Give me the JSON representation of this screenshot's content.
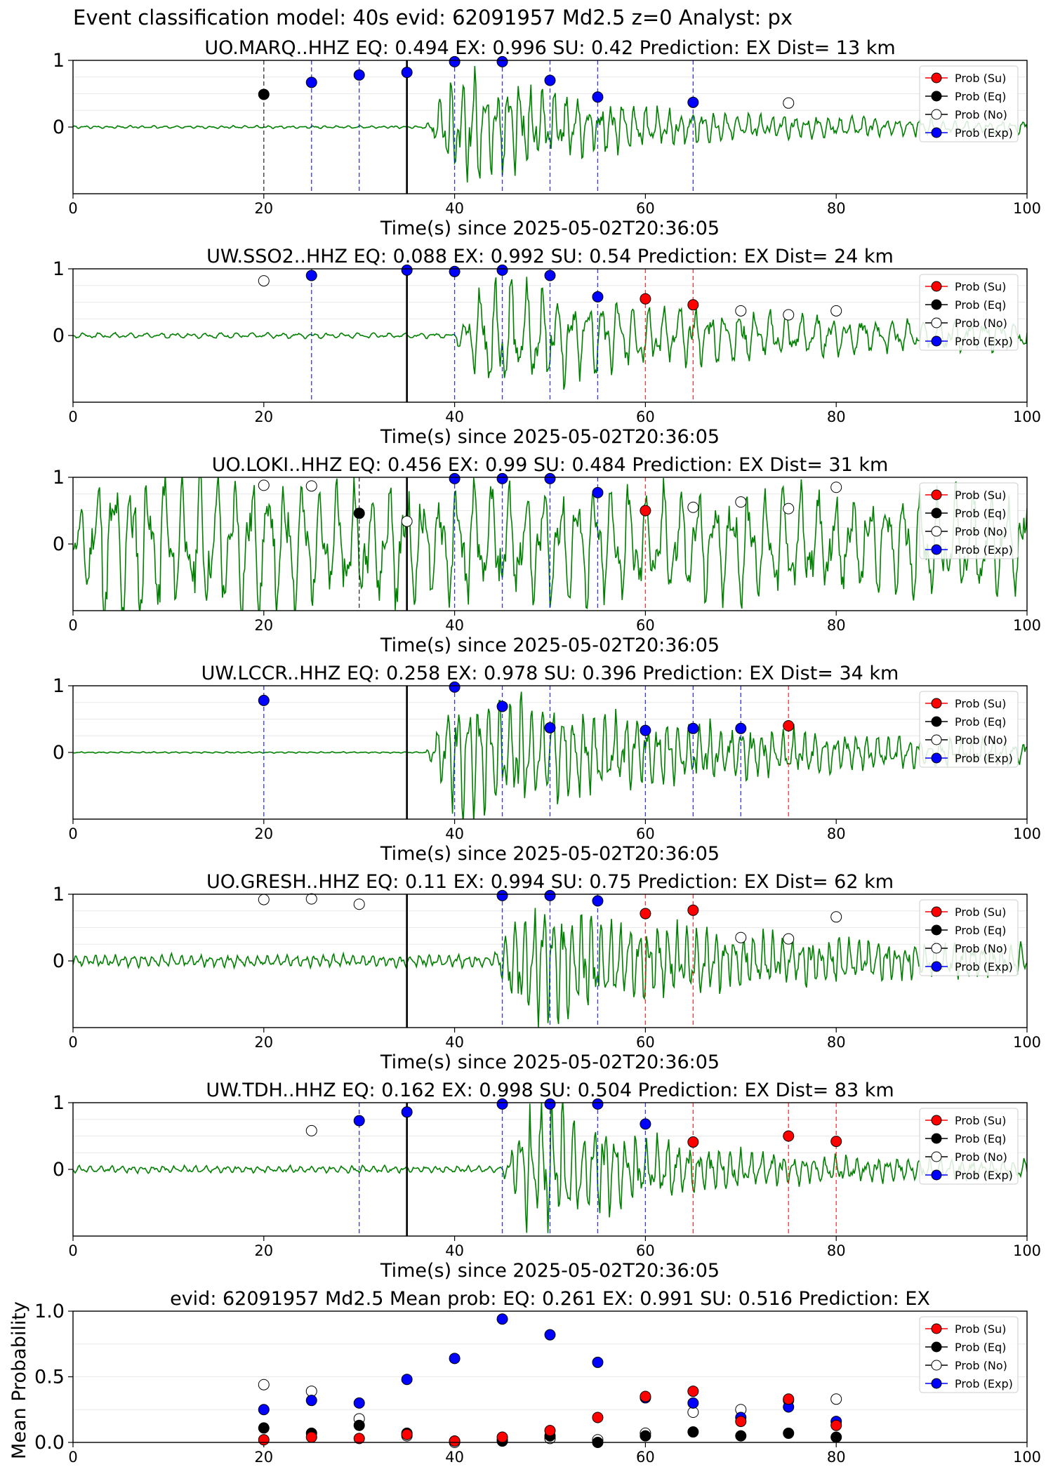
{
  "figure_title": "Event classification model: 40s evid: 62091957 Md2.5 z=0 Analyst: px",
  "legend_labels": [
    "Prob (Su)",
    "Prob (Eq)",
    "Prob (No)",
    "Prob (Exp)"
  ],
  "colors": {
    "su": "#ff0000",
    "eq": "#000000",
    "no": "#ffffff",
    "exp": "#0000ff",
    "waveform": "#008000"
  },
  "chart_data": [
    {
      "type": "line",
      "title": "UO.MARQ..HHZ   EQ: 0.494  EX: 0.996  SU: 0.42   Prediction: EX    Dist= 13 km",
      "xlabel": "Time(s) since 2025-05-02T20:36:05",
      "xlim": [
        0,
        100
      ],
      "ylim": [
        -1,
        1
      ],
      "xticks": [
        0,
        20,
        40,
        60,
        80,
        100
      ],
      "yticks": [
        0,
        1
      ],
      "origin_line_x": 35,
      "waveform": {
        "onset": 37,
        "end_time": 90,
        "amp": 0.75,
        "noise": 0.02,
        "period": 1.2,
        "seed": 3,
        "decay": 14,
        "tail": 0.08
      },
      "points": [
        {
          "x": 20,
          "y": 0.49,
          "class": "eq"
        },
        {
          "x": 25,
          "y": 0.67,
          "class": "exp"
        },
        {
          "x": 30,
          "y": 0.78,
          "class": "exp"
        },
        {
          "x": 35,
          "y": 0.82,
          "class": "exp"
        },
        {
          "x": 40,
          "y": 0.98,
          "class": "exp"
        },
        {
          "x": 45,
          "y": 0.98,
          "class": "exp"
        },
        {
          "x": 50,
          "y": 0.7,
          "class": "exp"
        },
        {
          "x": 55,
          "y": 0.45,
          "class": "exp"
        },
        {
          "x": 65,
          "y": 0.37,
          "class": "exp"
        },
        {
          "x": 75,
          "y": 0.36,
          "class": "no"
        }
      ]
    },
    {
      "type": "line",
      "title": "UW.SSO2..HHZ   EQ: 0.088  EX: 0.992  SU: 0.54   Prediction: EX    Dist= 24 km",
      "xlabel": "Time(s) since 2025-05-02T20:36:05",
      "xlim": [
        0,
        100
      ],
      "ylim": [
        -1,
        1
      ],
      "xticks": [
        0,
        20,
        40,
        60,
        80,
        100
      ],
      "yticks": [
        0,
        1
      ],
      "origin_line_x": 35,
      "waveform": {
        "onset": 40,
        "end_time": 100,
        "amp": 0.7,
        "noise": 0.04,
        "period": 1.6,
        "seed": 7,
        "decay": 20,
        "tail": 0.12
      },
      "points": [
        {
          "x": 20,
          "y": 0.82,
          "class": "no"
        },
        {
          "x": 25,
          "y": 0.9,
          "class": "exp"
        },
        {
          "x": 35,
          "y": 0.98,
          "class": "exp"
        },
        {
          "x": 40,
          "y": 0.96,
          "class": "exp"
        },
        {
          "x": 45,
          "y": 0.98,
          "class": "exp"
        },
        {
          "x": 50,
          "y": 0.9,
          "class": "exp"
        },
        {
          "x": 55,
          "y": 0.58,
          "class": "exp"
        },
        {
          "x": 60,
          "y": 0.55,
          "class": "su"
        },
        {
          "x": 65,
          "y": 0.46,
          "class": "su"
        },
        {
          "x": 70,
          "y": 0.37,
          "class": "no"
        },
        {
          "x": 75,
          "y": 0.31,
          "class": "no"
        },
        {
          "x": 80,
          "y": 0.37,
          "class": "no"
        }
      ]
    },
    {
      "type": "line",
      "title": "UO.LOKI..HHZ   EQ: 0.456  EX: 0.99  SU: 0.484   Prediction: EX    Dist= 31 km",
      "xlabel": "Time(s) since 2025-05-02T20:36:05",
      "xlim": [
        0,
        100
      ],
      "ylim": [
        -1,
        1
      ],
      "xticks": [
        0,
        20,
        40,
        60,
        80,
        100
      ],
      "yticks": [
        0,
        1
      ],
      "origin_line_x": 35,
      "waveform": {
        "onset": 0,
        "end_time": 100,
        "amp": 0.45,
        "noise": 0.25,
        "period": 1.8,
        "seed": 11,
        "decay": 60,
        "tail": 0.4
      },
      "points": [
        {
          "x": 20,
          "y": 0.88,
          "class": "no"
        },
        {
          "x": 25,
          "y": 0.87,
          "class": "no"
        },
        {
          "x": 30,
          "y": 0.46,
          "class": "eq"
        },
        {
          "x": 35,
          "y": 0.34,
          "class": "no"
        },
        {
          "x": 40,
          "y": 0.98,
          "class": "exp"
        },
        {
          "x": 45,
          "y": 0.98,
          "class": "exp"
        },
        {
          "x": 50,
          "y": 0.98,
          "class": "exp"
        },
        {
          "x": 55,
          "y": 0.77,
          "class": "exp"
        },
        {
          "x": 60,
          "y": 0.5,
          "class": "su"
        },
        {
          "x": 65,
          "y": 0.55,
          "class": "no"
        },
        {
          "x": 70,
          "y": 0.63,
          "class": "no"
        },
        {
          "x": 75,
          "y": 0.53,
          "class": "no"
        },
        {
          "x": 80,
          "y": 0.85,
          "class": "no"
        }
      ]
    },
    {
      "type": "line",
      "title": "UW.LCCR..HHZ   EQ: 0.258  EX: 0.978  SU: 0.396   Prediction: EX    Dist= 34 km",
      "xlabel": "Time(s) since 2025-05-02T20:36:05",
      "xlim": [
        0,
        100
      ],
      "ylim": [
        -1,
        1
      ],
      "xticks": [
        0,
        20,
        40,
        60,
        80,
        100
      ],
      "yticks": [
        0,
        1
      ],
      "origin_line_x": 35,
      "waveform": {
        "onset": 37,
        "end_time": 100,
        "amp": 0.85,
        "noise": 0.01,
        "period": 1.1,
        "seed": 19,
        "decay": 30,
        "tail": 0.05
      },
      "points": [
        {
          "x": 20,
          "y": 0.78,
          "class": "exp"
        },
        {
          "x": 40,
          "y": 0.98,
          "class": "exp"
        },
        {
          "x": 45,
          "y": 0.69,
          "class": "exp"
        },
        {
          "x": 50,
          "y": 0.37,
          "class": "exp"
        },
        {
          "x": 60,
          "y": 0.33,
          "class": "exp"
        },
        {
          "x": 65,
          "y": 0.36,
          "class": "exp"
        },
        {
          "x": 70,
          "y": 0.36,
          "class": "exp"
        },
        {
          "x": 75,
          "y": 0.4,
          "class": "su"
        }
      ]
    },
    {
      "type": "line",
      "title": "UO.GRESH..HHZ   EQ: 0.11  EX: 0.994  SU: 0.75   Prediction: EX    Dist= 62 km",
      "xlabel": "Time(s) since 2025-05-02T20:36:05",
      "xlim": [
        0,
        100
      ],
      "ylim": [
        -1,
        1
      ],
      "xticks": [
        0,
        20,
        40,
        60,
        80,
        100
      ],
      "yticks": [
        0,
        1
      ],
      "origin_line_x": 35,
      "waveform": {
        "onset": 44,
        "end_time": 100,
        "amp": 0.7,
        "noise": 0.09,
        "period": 1.0,
        "seed": 23,
        "decay": 18,
        "tail": 0.12
      },
      "points": [
        {
          "x": 20,
          "y": 0.92,
          "class": "no"
        },
        {
          "x": 25,
          "y": 0.93,
          "class": "no"
        },
        {
          "x": 30,
          "y": 0.85,
          "class": "no"
        },
        {
          "x": 45,
          "y": 0.98,
          "class": "exp"
        },
        {
          "x": 50,
          "y": 0.98,
          "class": "exp"
        },
        {
          "x": 55,
          "y": 0.9,
          "class": "exp"
        },
        {
          "x": 60,
          "y": 0.71,
          "class": "su"
        },
        {
          "x": 65,
          "y": 0.76,
          "class": "su"
        },
        {
          "x": 70,
          "y": 0.35,
          "class": "no"
        },
        {
          "x": 75,
          "y": 0.33,
          "class": "no"
        },
        {
          "x": 80,
          "y": 0.66,
          "class": "no"
        }
      ]
    },
    {
      "type": "line",
      "title": "UW.TDH..HHZ   EQ: 0.162  EX: 0.998  SU: 0.504   Prediction: EX    Dist= 83 km",
      "xlabel": "Time(s) since 2025-05-02T20:36:05",
      "xlim": [
        0,
        100
      ],
      "ylim": [
        -1,
        1
      ],
      "xticks": [
        0,
        20,
        40,
        60,
        80,
        100
      ],
      "yticks": [
        0,
        1
      ],
      "origin_line_x": 35,
      "waveform": {
        "onset": 45,
        "end_time": 100,
        "amp": 0.85,
        "noise": 0.05,
        "period": 1.1,
        "seed": 31,
        "decay": 12,
        "tail": 0.08
      },
      "points": [
        {
          "x": 25,
          "y": 0.58,
          "class": "no"
        },
        {
          "x": 30,
          "y": 0.73,
          "class": "exp"
        },
        {
          "x": 35,
          "y": 0.86,
          "class": "exp"
        },
        {
          "x": 45,
          "y": 0.98,
          "class": "exp"
        },
        {
          "x": 50,
          "y": 0.98,
          "class": "exp"
        },
        {
          "x": 55,
          "y": 0.98,
          "class": "exp"
        },
        {
          "x": 60,
          "y": 0.68,
          "class": "exp"
        },
        {
          "x": 65,
          "y": 0.41,
          "class": "su"
        },
        {
          "x": 75,
          "y": 0.5,
          "class": "su"
        },
        {
          "x": 80,
          "y": 0.42,
          "class": "su"
        }
      ]
    },
    {
      "type": "scatter",
      "title": "evid: 62091957  Md2.5   Mean prob:   EQ: 0.261  EX: 0.991  SU: 0.516   Prediction: EX",
      "ylabel": "Mean Probability",
      "xlim": [
        0,
        100
      ],
      "ylim": [
        0,
        1
      ],
      "xticks": [
        0,
        20,
        40,
        60,
        80,
        100
      ],
      "yticks": [
        0.0,
        0.5,
        1.0
      ],
      "ytick_labels": [
        "0.0",
        "0.5",
        "1.0"
      ],
      "x": [
        20,
        25,
        30,
        35,
        40,
        45,
        50,
        55,
        60,
        65,
        70,
        75,
        80
      ],
      "series": [
        {
          "name": "Prob (No)",
          "class": "no",
          "values": [
            0.44,
            0.39,
            0.18,
            0.05,
            0.0,
            0.02,
            0.03,
            0.02,
            0.07,
            0.23,
            0.25,
            0.32,
            0.33
          ]
        },
        {
          "name": "Prob (Exp)",
          "class": "exp",
          "values": [
            0.25,
            0.32,
            0.3,
            0.48,
            0.64,
            0.94,
            0.82,
            0.61,
            0.34,
            0.3,
            0.19,
            0.27,
            0.16
          ]
        },
        {
          "name": "Prob (Eq)",
          "class": "eq",
          "values": [
            0.11,
            0.07,
            0.13,
            0.07,
            0.01,
            0.01,
            0.05,
            0.0,
            0.05,
            0.08,
            0.05,
            0.07,
            0.04
          ]
        },
        {
          "name": "Prob (Su)",
          "class": "su",
          "values": [
            0.02,
            0.04,
            0.03,
            0.06,
            0.01,
            0.04,
            0.09,
            0.19,
            0.35,
            0.39,
            0.16,
            0.33,
            0.13
          ]
        }
      ]
    }
  ]
}
